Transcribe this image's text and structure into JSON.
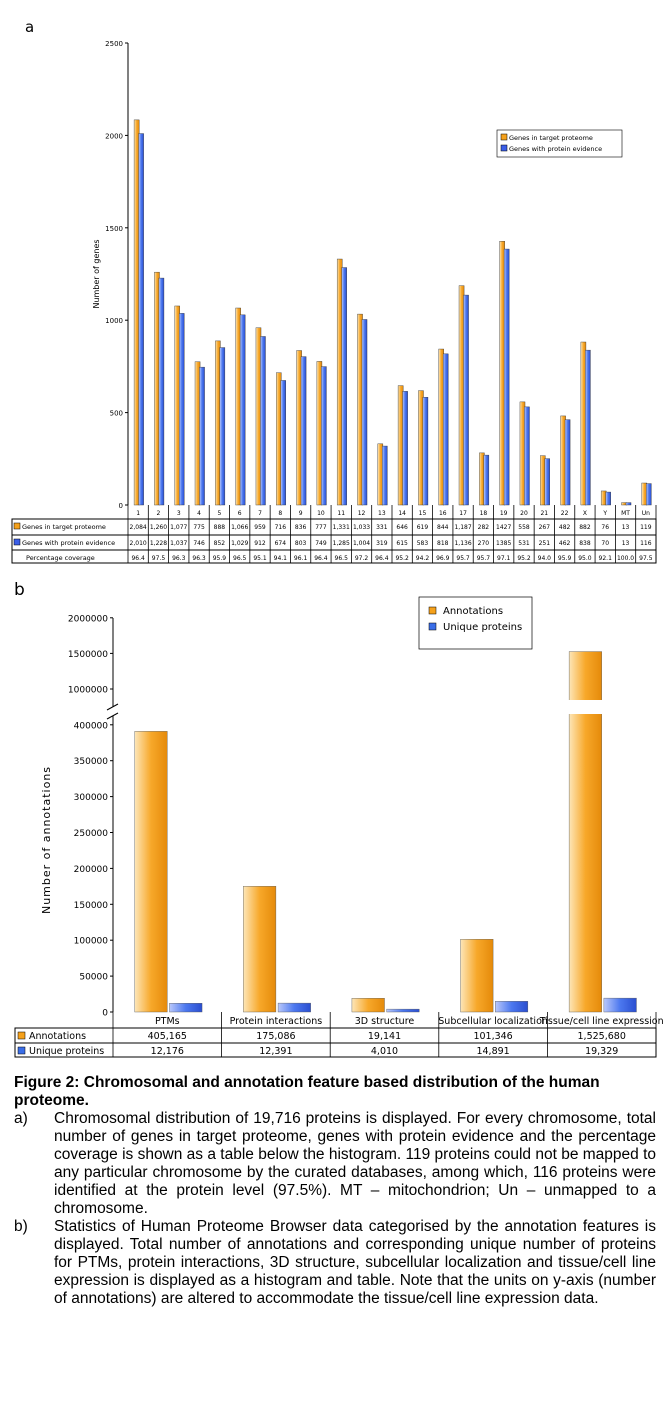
{
  "panel_labels": [
    "a",
    "b"
  ],
  "chart_data": [
    {
      "type": "bar",
      "panel": "a",
      "ylabel": "Number of genes",
      "ylim": [
        0,
        2500
      ],
      "yticks": [
        0,
        500,
        1000,
        1500,
        2000,
        2500
      ],
      "grid": false,
      "legend": "top-right",
      "categories": [
        "1",
        "2",
        "3",
        "4",
        "5",
        "6",
        "7",
        "8",
        "9",
        "10",
        "11",
        "12",
        "13",
        "14",
        "15",
        "16",
        "17",
        "18",
        "19",
        "20",
        "21",
        "22",
        "X",
        "Y",
        "MT",
        "Un"
      ],
      "series": [
        {
          "name": "Genes in target proteome",
          "color": "#f5a11b",
          "values": [
            2084,
            1260,
            1077,
            775,
            888,
            1066,
            959,
            716,
            836,
            777,
            1331,
            1033,
            331,
            646,
            619,
            844,
            1187,
            282,
            1427,
            558,
            267,
            482,
            882,
            76,
            13,
            119
          ],
          "labels": [
            "2,084",
            "1,260",
            "1,077",
            "775",
            "888",
            "1,066",
            "959",
            "716",
            "836",
            "777",
            "1,331",
            "1,033",
            "331",
            "646",
            "619",
            "844",
            "1,187",
            "282",
            "1427",
            "558",
            "267",
            "482",
            "882",
            "76",
            "13",
            "119"
          ]
        },
        {
          "name": "Genes with protein evidence",
          "color": "#3a5ee8",
          "values": [
            2010,
            1228,
            1037,
            746,
            852,
            1029,
            912,
            674,
            803,
            749,
            1285,
            1004,
            319,
            615,
            583,
            818,
            1136,
            270,
            1385,
            531,
            251,
            462,
            838,
            70,
            13,
            116
          ],
          "labels": [
            "2,010",
            "1,228",
            "1,037",
            "746",
            "852",
            "1,029",
            "912",
            "674",
            "803",
            "749",
            "1,285",
            "1,004",
            "319",
            "615",
            "583",
            "818",
            "1,136",
            "270",
            "1385",
            "531",
            "251",
            "462",
            "838",
            "70",
            "13",
            "116"
          ]
        }
      ],
      "table_extra_row": {
        "name": "Percentage coverage",
        "values": [
          "96.4",
          "97.5",
          "96.3",
          "96.3",
          "95.9",
          "96.5",
          "95.1",
          "94.1",
          "96.1",
          "96.4",
          "96.5",
          "97.2",
          "96.4",
          "95.2",
          "94.2",
          "96.9",
          "95.7",
          "95.7",
          "97.1",
          "95.2",
          "94.0",
          "95.9",
          "95.0",
          "92.1",
          "100.0",
          "97.5"
        ]
      }
    },
    {
      "type": "bar",
      "panel": "b",
      "ylabel": "Number of annotations",
      "axis_break": [
        400000,
        1000000
      ],
      "grid": false,
      "legend": "top-right",
      "yticks": [
        "0",
        "50000",
        "100000",
        "150000",
        "200000",
        "250000",
        "300000",
        "350000",
        "400000",
        "1000000",
        "1500000",
        "2000000"
      ],
      "categories": [
        "PTMs",
        "Protein interactions",
        "3D structure",
        "Subcellular localization",
        "Tissue/cell line expression"
      ],
      "series": [
        {
          "name": "Annotations",
          "color": "#f5a11b",
          "values": [
            405165,
            175086,
            19141,
            101346,
            1525680
          ],
          "labels": [
            "405,165",
            "175,086",
            "19,141",
            "101,346",
            "1,525,680"
          ]
        },
        {
          "name": "Unique proteins",
          "color": "#3a6ee8",
          "values": [
            12176,
            12391,
            4010,
            14891,
            19329
          ],
          "labels": [
            "12,176",
            "12,391",
            "4,010",
            "14,891",
            "19,329"
          ]
        }
      ]
    }
  ],
  "caption": {
    "title": "Figure 2: Chromosomal and annotation feature based distribution of the human proteome.",
    "items": [
      {
        "label": "a)",
        "text": "Chromosomal distribution of 19,716 proteins is displayed. For every chromosome, total number of genes in target proteome, genes with protein evidence and the percentage coverage is shown as a table below the histogram. 119 proteins could not be mapped to any particular chromosome by the curated databases, among which, 116 proteins were identified at the protein level (97.5%). MT – mitochondrion; Un – unmapped to a chromosome."
      },
      {
        "label": "b)",
        "text": "Statistics of Human Proteome Browser data categorised by the annotation features is displayed. Total number of annotations and corresponding unique number of proteins for PTMs, protein interactions, 3D structure, subcellular localization and tissue/cell line expression is displayed as a histogram and table. Note that the units on y-axis (number of annotations) are altered to accommodate the tissue/cell line expression data."
      }
    ]
  }
}
